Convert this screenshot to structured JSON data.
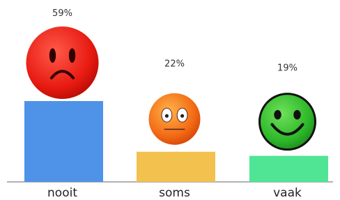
{
  "chart_data": {
    "type": "bar",
    "categories": [
      "nooit",
      "soms",
      "vaak"
    ],
    "values": [
      59,
      22,
      19
    ],
    "value_labels": [
      "59%",
      "22%",
      "19%"
    ],
    "colors": [
      "#4f93e8",
      "#f2c14e",
      "#4fe594"
    ]
  }
}
